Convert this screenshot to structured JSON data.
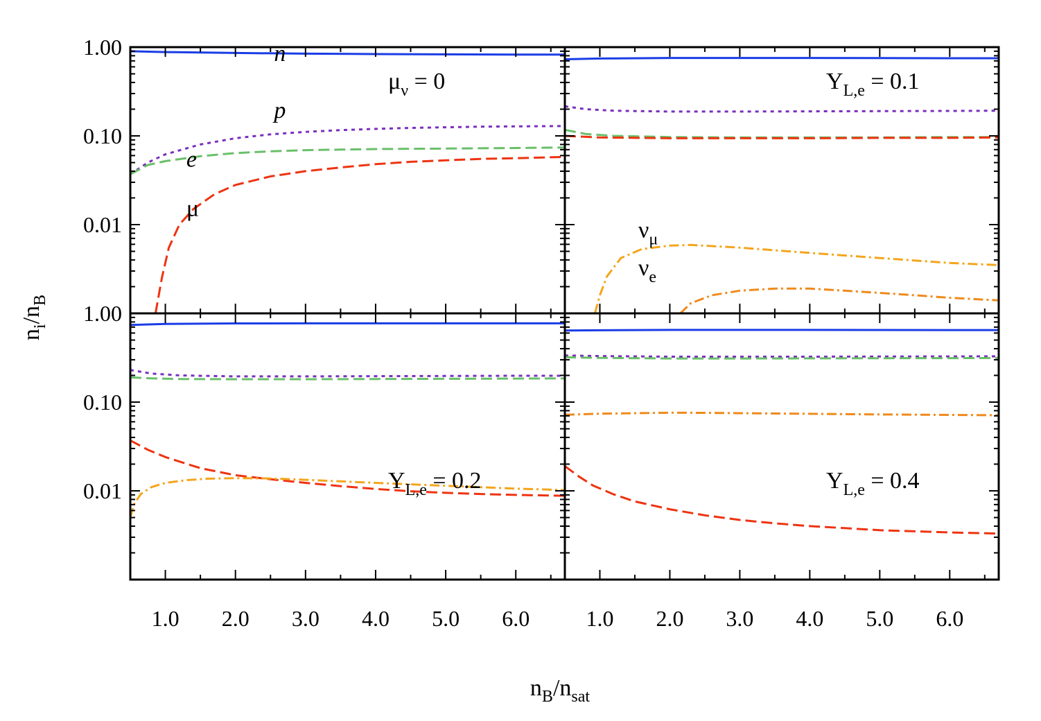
{
  "chart_data": {
    "type": "line",
    "layout": "2x2 grid, shared axes",
    "xlabel": "n",
    "xlabel_sub1": "B",
    "xlabel_mid": "/n",
    "xlabel_sub2": "sat",
    "ylabel": "n",
    "ylabel_sub1": "i",
    "ylabel_mid": "/n",
    "ylabel_sub2": "B",
    "xlim": [
      0.5,
      6.7
    ],
    "ylim_log": [
      0.001,
      1.0
    ],
    "x_ticks": [
      {
        "value": 1.0,
        "label": "1.0"
      },
      {
        "value": 2.0,
        "label": "2.0"
      },
      {
        "value": 3.0,
        "label": "3.0"
      },
      {
        "value": 4.0,
        "label": "4.0"
      },
      {
        "value": 5.0,
        "label": "5.0"
      },
      {
        "value": 6.0,
        "label": "6.0"
      }
    ],
    "y_ticks_top": [
      {
        "value": 1.0,
        "label": "1.00"
      },
      {
        "value": 0.1,
        "label": "0.10"
      },
      {
        "value": 0.01,
        "label": "0.01"
      }
    ],
    "y_ticks_bottom": [
      {
        "value": 1.0,
        "label": "1.00"
      },
      {
        "value": 0.1,
        "label": "0.10"
      },
      {
        "value": 0.01,
        "label": "0.01"
      }
    ],
    "series_styles": {
      "n": {
        "color": "#1a3de6",
        "dash": ""
      },
      "p": {
        "color": "#7a2fbe",
        "dash": "5 6"
      },
      "e": {
        "color": "#6abf6a",
        "dash": "16 7"
      },
      "mu": {
        "color": "#ee3311",
        "dash": "16 7"
      },
      "nu_mu": {
        "color": "#f4a51c",
        "dash": "14 5 3 5"
      },
      "nu_e": {
        "color": "#ef8a1c",
        "dash": "14 5 3 5"
      }
    },
    "panels": [
      {
        "id": "top-left",
        "label_main": "μ",
        "label_sub": "ν",
        "label_rest": " = 0",
        "series": [
          {
            "name": "n",
            "x": [
              0.5,
              1.0,
              2.0,
              3.0,
              4.0,
              5.0,
              6.0,
              6.7
            ],
            "y": [
              0.9,
              0.88,
              0.86,
              0.845,
              0.835,
              0.83,
              0.825,
              0.825
            ]
          },
          {
            "name": "p",
            "x": [
              0.5,
              0.75,
              1.0,
              1.5,
              2.0,
              2.5,
              3.0,
              3.5,
              4.0,
              4.5,
              5.0,
              5.5,
              6.0,
              6.7
            ],
            "y": [
              0.037,
              0.05,
              0.062,
              0.08,
              0.094,
              0.104,
              0.111,
              0.116,
              0.12,
              0.123,
              0.125,
              0.127,
              0.128,
              0.129
            ]
          },
          {
            "name": "e",
            "x": [
              0.5,
              0.75,
              1.0,
              1.5,
              2.0,
              2.5,
              3.0,
              3.5,
              4.0,
              5.0,
              6.0,
              6.7
            ],
            "y": [
              0.037,
              0.047,
              0.052,
              0.059,
              0.064,
              0.067,
              0.069,
              0.07,
              0.071,
              0.072,
              0.073,
              0.074
            ]
          },
          {
            "name": "mu",
            "x": [
              0.86,
              0.95,
              1.05,
              1.2,
              1.4,
              1.7,
              2.0,
              2.5,
              3.0,
              3.5,
              4.0,
              4.5,
              5.0,
              5.5,
              6.0,
              6.7
            ],
            "y": [
              0.001,
              0.0025,
              0.0055,
              0.01,
              0.015,
              0.022,
              0.028,
              0.035,
              0.04,
              0.044,
              0.048,
              0.051,
              0.053,
              0.055,
              0.056,
              0.058
            ]
          }
        ],
        "curve_labels": [
          {
            "text": "n",
            "italic": true,
            "at": [
              2.55,
              0.7
            ]
          },
          {
            "text": "p",
            "italic": true,
            "at": [
              2.55,
              0.16
            ]
          },
          {
            "text": "e",
            "italic": true,
            "at": [
              1.3,
              0.045
            ]
          },
          {
            "text": "μ",
            "italic": false,
            "at": [
              1.3,
              0.0125
            ]
          }
        ]
      },
      {
        "id": "top-right",
        "label_main": "Y",
        "label_sub": "L,e",
        "label_rest": " = 0.1",
        "series": [
          {
            "name": "n",
            "x": [
              0.5,
              1.0,
              2.0,
              3.0,
              4.0,
              5.0,
              6.0,
              6.7
            ],
            "y": [
              0.73,
              0.745,
              0.755,
              0.755,
              0.755,
              0.752,
              0.75,
              0.75
            ]
          },
          {
            "name": "p",
            "x": [
              0.5,
              0.8,
              1.2,
              2.0,
              3.0,
              4.0,
              5.0,
              6.0,
              6.7
            ],
            "y": [
              0.215,
              0.2,
              0.192,
              0.188,
              0.188,
              0.189,
              0.19,
              0.191,
              0.192
            ]
          },
          {
            "name": "e",
            "x": [
              0.5,
              0.8,
              1.2,
              2.0,
              3.0,
              4.0,
              5.0,
              6.0,
              6.7
            ],
            "y": [
              0.117,
              0.105,
              0.1,
              0.097,
              0.096,
              0.096,
              0.096,
              0.097,
              0.097
            ]
          },
          {
            "name": "mu",
            "x": [
              0.5,
              1.0,
              2.0,
              3.0,
              4.0,
              5.0,
              6.0,
              6.7
            ],
            "y": [
              0.1,
              0.096,
              0.094,
              0.094,
              0.094,
              0.095,
              0.095,
              0.096
            ]
          },
          {
            "name": "nu_mu",
            "x": [
              0.93,
              1.0,
              1.1,
              1.3,
              1.6,
              2.0,
              2.3,
              3.0,
              4.0,
              5.0,
              6.0,
              6.7
            ],
            "y": [
              0.001,
              0.0016,
              0.0026,
              0.0042,
              0.0053,
              0.0058,
              0.0059,
              0.0055,
              0.0048,
              0.0042,
              0.0037,
              0.0035
            ]
          },
          {
            "name": "nu_e",
            "x": [
              2.15,
              2.3,
              2.6,
              3.0,
              3.5,
              4.0,
              4.5,
              5.0,
              5.5,
              6.0,
              6.7
            ],
            "y": [
              0.001,
              0.0013,
              0.0016,
              0.0018,
              0.0019,
              0.0019,
              0.0018,
              0.0017,
              0.0016,
              0.0015,
              0.0014
            ]
          }
        ],
        "curve_labels": [
          {
            "text": "ν",
            "sub": "μ",
            "italic": false,
            "at": [
              1.55,
              0.0072
            ]
          },
          {
            "text": "ν",
            "sub": "e",
            "italic": false,
            "at": [
              1.55,
              0.0027
            ]
          }
        ]
      },
      {
        "id": "bottom-left",
        "label_main": "Y",
        "label_sub": "L,e",
        "label_rest": " = 0.2",
        "series": [
          {
            "name": "n",
            "x": [
              0.5,
              1.0,
              2.0,
              3.0,
              4.0,
              5.0,
              6.0,
              6.7
            ],
            "y": [
              0.74,
              0.76,
              0.77,
              0.772,
              0.772,
              0.772,
              0.772,
              0.772
            ]
          },
          {
            "name": "p",
            "x": [
              0.5,
              0.8,
              1.2,
              2.0,
              3.0,
              4.0,
              5.0,
              6.0,
              6.7
            ],
            "y": [
              0.23,
              0.21,
              0.2,
              0.195,
              0.195,
              0.196,
              0.197,
              0.198,
              0.198
            ]
          },
          {
            "name": "e",
            "x": [
              0.5,
              0.8,
              1.2,
              2.0,
              3.0,
              4.0,
              5.0,
              6.0,
              6.7
            ],
            "y": [
              0.19,
              0.185,
              0.182,
              0.181,
              0.181,
              0.182,
              0.183,
              0.184,
              0.185
            ]
          },
          {
            "name": "mu",
            "x": [
              0.5,
              0.75,
              1.0,
              1.5,
              2.0,
              2.5,
              3.0,
              3.5,
              4.0,
              4.5,
              5.0,
              5.5,
              6.0,
              6.7
            ],
            "y": [
              0.037,
              0.029,
              0.024,
              0.018,
              0.015,
              0.0135,
              0.0123,
              0.0113,
              0.0105,
              0.0099,
              0.0095,
              0.0092,
              0.009,
              0.0088
            ]
          },
          {
            "name": "nu_mu",
            "x": [
              0.5,
              0.55,
              0.65,
              0.8,
              1.0,
              1.3,
              1.6,
              2.0,
              2.5,
              3.0,
              4.0,
              5.0,
              6.0,
              6.7
            ],
            "y": [
              0.005,
              0.007,
              0.0092,
              0.011,
              0.0123,
              0.0132,
              0.0137,
              0.0139,
              0.0138,
              0.0133,
              0.0123,
              0.0114,
              0.0106,
              0.0102
            ]
          }
        ],
        "curve_labels": []
      },
      {
        "id": "bottom-right",
        "label_main": "Y",
        "label_sub": "L,e",
        "label_rest": " = 0.4",
        "series": [
          {
            "name": "n",
            "x": [
              0.5,
              1.0,
              2.0,
              3.0,
              4.0,
              5.0,
              6.0,
              6.7
            ],
            "y": [
              0.64,
              0.645,
              0.65,
              0.65,
              0.65,
              0.649,
              0.648,
              0.648
            ]
          },
          {
            "name": "p",
            "x": [
              0.5,
              1.0,
              2.0,
              3.0,
              4.0,
              5.0,
              6.0,
              6.7
            ],
            "y": [
              0.335,
              0.33,
              0.325,
              0.325,
              0.325,
              0.326,
              0.327,
              0.328
            ]
          },
          {
            "name": "e",
            "x": [
              0.5,
              1.0,
              2.0,
              3.0,
              4.0,
              5.0,
              6.0,
              6.7
            ],
            "y": [
              0.32,
              0.315,
              0.31,
              0.31,
              0.311,
              0.312,
              0.313,
              0.314
            ]
          },
          {
            "name": "nu_e",
            "x": [
              0.5,
              1.0,
              1.5,
              2.0,
              2.5,
              3.0,
              4.0,
              5.0,
              6.0,
              6.7
            ],
            "y": [
              0.072,
              0.074,
              0.075,
              0.076,
              0.0757,
              0.075,
              0.0738,
              0.0726,
              0.0717,
              0.071
            ]
          },
          {
            "name": "mu",
            "x": [
              0.5,
              0.7,
              0.9,
              1.2,
              1.5,
              2.0,
              2.5,
              3.0,
              3.5,
              4.0,
              4.5,
              5.0,
              5.5,
              6.0,
              6.7
            ],
            "y": [
              0.019,
              0.0145,
              0.0115,
              0.0091,
              0.0076,
              0.0062,
              0.0053,
              0.0047,
              0.0043,
              0.004,
              0.0038,
              0.0036,
              0.0035,
              0.0034,
              0.0033
            ]
          }
        ],
        "curve_labels": []
      }
    ]
  }
}
